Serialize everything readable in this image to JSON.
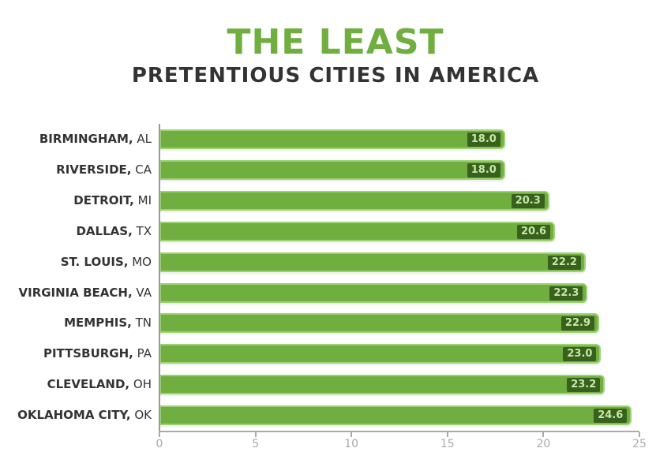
{
  "title_line1": "THE LEAST",
  "title_line2": "PRETENTIOUS CITIES IN AMERICA",
  "chart_data": {
    "type": "bar",
    "orientation": "horizontal",
    "title": "THE LEAST PRETENTIOUS CITIES IN AMERICA",
    "categories": [
      {
        "city": "BIRMINGHAM,",
        "state": "AL"
      },
      {
        "city": "RIVERSIDE,",
        "state": "CA"
      },
      {
        "city": "DETROIT,",
        "state": "MI"
      },
      {
        "city": "DALLAS,",
        "state": "TX"
      },
      {
        "city": "ST. LOUIS,",
        "state": "MO"
      },
      {
        "city": "VIRGINIA BEACH,",
        "state": "VA"
      },
      {
        "city": "MEMPHIS,",
        "state": "TN"
      },
      {
        "city": "PITTSBURGH,",
        "state": "PA"
      },
      {
        "city": "CLEVELAND,",
        "state": "OH"
      },
      {
        "city": "OKLAHOMA CITY,",
        "state": "OK"
      }
    ],
    "values": [
      18.0,
      18.0,
      20.3,
      20.6,
      22.2,
      22.3,
      22.9,
      23.0,
      23.2,
      24.6
    ],
    "value_labels": [
      "18.0",
      "18.0",
      "20.3",
      "20.6",
      "22.2",
      "22.3",
      "22.9",
      "23.0",
      "23.2",
      "24.6"
    ],
    "xlim": [
      0,
      25
    ],
    "xticks": [
      "0",
      "5",
      "10",
      "15",
      "20",
      "25"
    ],
    "grid": false,
    "legend": "none",
    "colors": {
      "bar": "#6fae3f",
      "bar_border": "#9fd275",
      "label_bg": "#37611d",
      "label_text": "#c8e6a8",
      "title_green": "#6fae3f",
      "title_dark": "#333333",
      "axis": "#aaaaaa"
    }
  }
}
